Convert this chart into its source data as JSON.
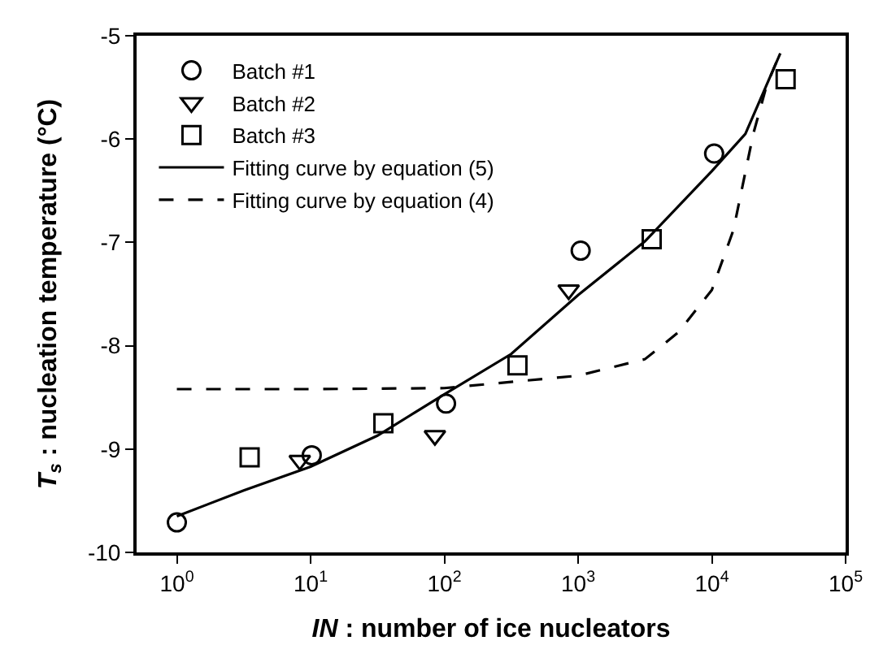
{
  "chart_data": {
    "type": "scatter",
    "xlabel": "IN : number of ice nucleators",
    "ylabel": "T$_{s}$ : nucleation temperature (°C)",
    "log": "x",
    "xlim": [
      0.5,
      100000
    ],
    "ylim": [
      -10,
      -5
    ],
    "xticks": [
      {
        "value": 1,
        "label": "10$^{0}$"
      },
      {
        "value": 10,
        "label": "10$^{1}$"
      },
      {
        "value": 100,
        "label": "10$^{2}$"
      },
      {
        "value": 1000,
        "label": "10$^{3}$"
      },
      {
        "value": 10000,
        "label": "10$^{4}$"
      },
      {
        "value": 100000,
        "label": "10$^{5}$"
      }
    ],
    "yticks": [
      -10,
      -9,
      -8,
      -7,
      -6,
      -5
    ],
    "legend": "top left",
    "series": [
      {
        "name": "Batch #1",
        "marker": "circle",
        "color": "#000000",
        "x": [
          1.0,
          10.2,
          103,
          1045,
          10400
        ],
        "values": [
          -9.71,
          -9.06,
          -8.56,
          -7.08,
          -6.14
        ]
      },
      {
        "name": "Batch #2",
        "marker": "triangle",
        "color": "#000000",
        "x": [
          8.3,
          85,
          850
        ],
        "values": [
          -9.11,
          -8.87,
          -7.46
        ]
      },
      {
        "name": "Batch #3",
        "marker": "square",
        "color": "#000000",
        "x": [
          3.5,
          35,
          352,
          3550,
          35600
        ],
        "values": [
          -9.08,
          -8.75,
          -8.19,
          -6.97,
          -5.42
        ]
      },
      {
        "name": "Fitting curve by equation (5)",
        "type": "line",
        "marker": "none",
        "line_style": "solid",
        "color": "#000000",
        "x": [
          1,
          3.16,
          10,
          31.6,
          100,
          316,
          1000,
          3160,
          10000,
          17800,
          32500
        ],
        "values": [
          -9.65,
          -9.4,
          -9.17,
          -8.87,
          -8.47,
          -8.08,
          -7.51,
          -6.99,
          -6.31,
          -5.95,
          -5.17
        ]
      },
      {
        "name": "Fitting curve by equation (4)",
        "type": "line",
        "marker": "none",
        "line_style": "dashed",
        "color": "#000000",
        "x": [
          1,
          10,
          100,
          1000,
          3160,
          5620,
          10000,
          14500,
          20400,
          25700,
          32400
        ],
        "values": [
          -8.42,
          -8.42,
          -8.41,
          -8.29,
          -8.13,
          -7.87,
          -7.46,
          -6.88,
          -5.95,
          -5.48,
          -5.17
        ]
      }
    ]
  }
}
